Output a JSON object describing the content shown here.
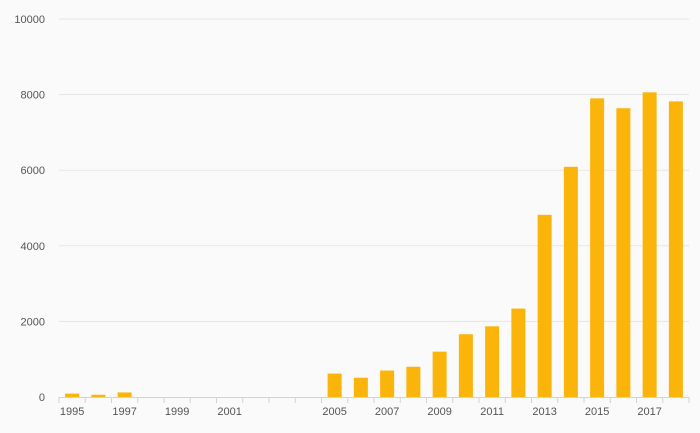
{
  "chart_data": {
    "type": "bar",
    "title": "",
    "xlabel": "",
    "ylabel": "",
    "ylim": [
      0,
      10000
    ],
    "grid": true,
    "bar_color": "#fbb40a",
    "categories": [
      "1995",
      "1996",
      "1997",
      "1998",
      "1999",
      "2000",
      "2001",
      "2002",
      "2003",
      "2004",
      "2005",
      "2006",
      "2007",
      "2008",
      "2009",
      "2010",
      "2011",
      "2012",
      "2013",
      "2014",
      "2015",
      "2016",
      "2017",
      "2018"
    ],
    "values": [
      90,
      60,
      120,
      0,
      0,
      0,
      0,
      0,
      0,
      0,
      620,
      510,
      700,
      800,
      1200,
      1660,
      1870,
      2340,
      4820,
      6090,
      7900,
      7640,
      8060,
      7820
    ],
    "y_ticks": [
      "0",
      "2000",
      "4000",
      "6000",
      "8000",
      "10000"
    ],
    "y_tick_values": [
      0,
      2000,
      4000,
      6000,
      8000,
      10000
    ],
    "x_tick_labels": [
      "1995",
      "1997",
      "1999",
      "2001",
      "2005",
      "2007",
      "2009",
      "2011",
      "2013",
      "2015",
      "2017"
    ]
  }
}
